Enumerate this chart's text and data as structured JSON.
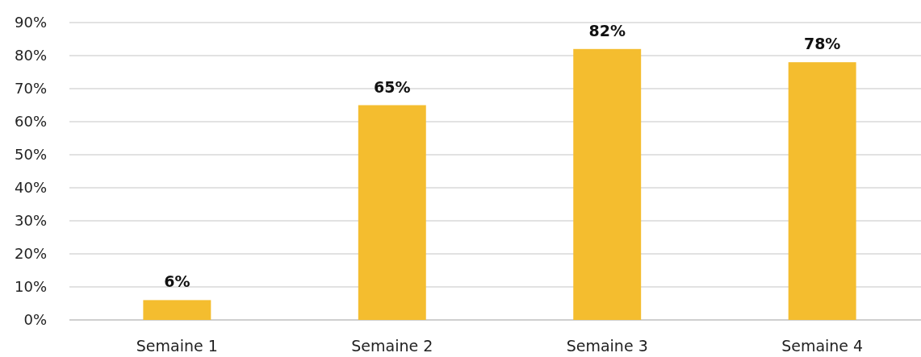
{
  "chart_data": {
    "type": "bar",
    "categories": [
      "Semaine 1",
      "Semaine 2",
      "Semaine 3",
      "Semaine 4"
    ],
    "values": [
      6,
      65,
      82,
      78
    ],
    "color": "#f4bd2f",
    "value_labels": [
      "6%",
      "65%",
      "82%",
      "78%"
    ],
    "ylim": [
      0,
      90
    ],
    "yticks": [
      {
        "value": 0,
        "label": "0%"
      },
      {
        "value": 10,
        "label": "10%"
      },
      {
        "value": 20,
        "label": "20%"
      },
      {
        "value": 30,
        "label": "30%"
      },
      {
        "value": 40,
        "label": "40%"
      },
      {
        "value": 50,
        "label": "50%"
      },
      {
        "value": 60,
        "label": "60%"
      },
      {
        "value": 70,
        "label": "70%"
      },
      {
        "value": 80,
        "label": "80%"
      },
      {
        "value": 90,
        "label": "90%"
      }
    ],
    "grid": "y"
  }
}
